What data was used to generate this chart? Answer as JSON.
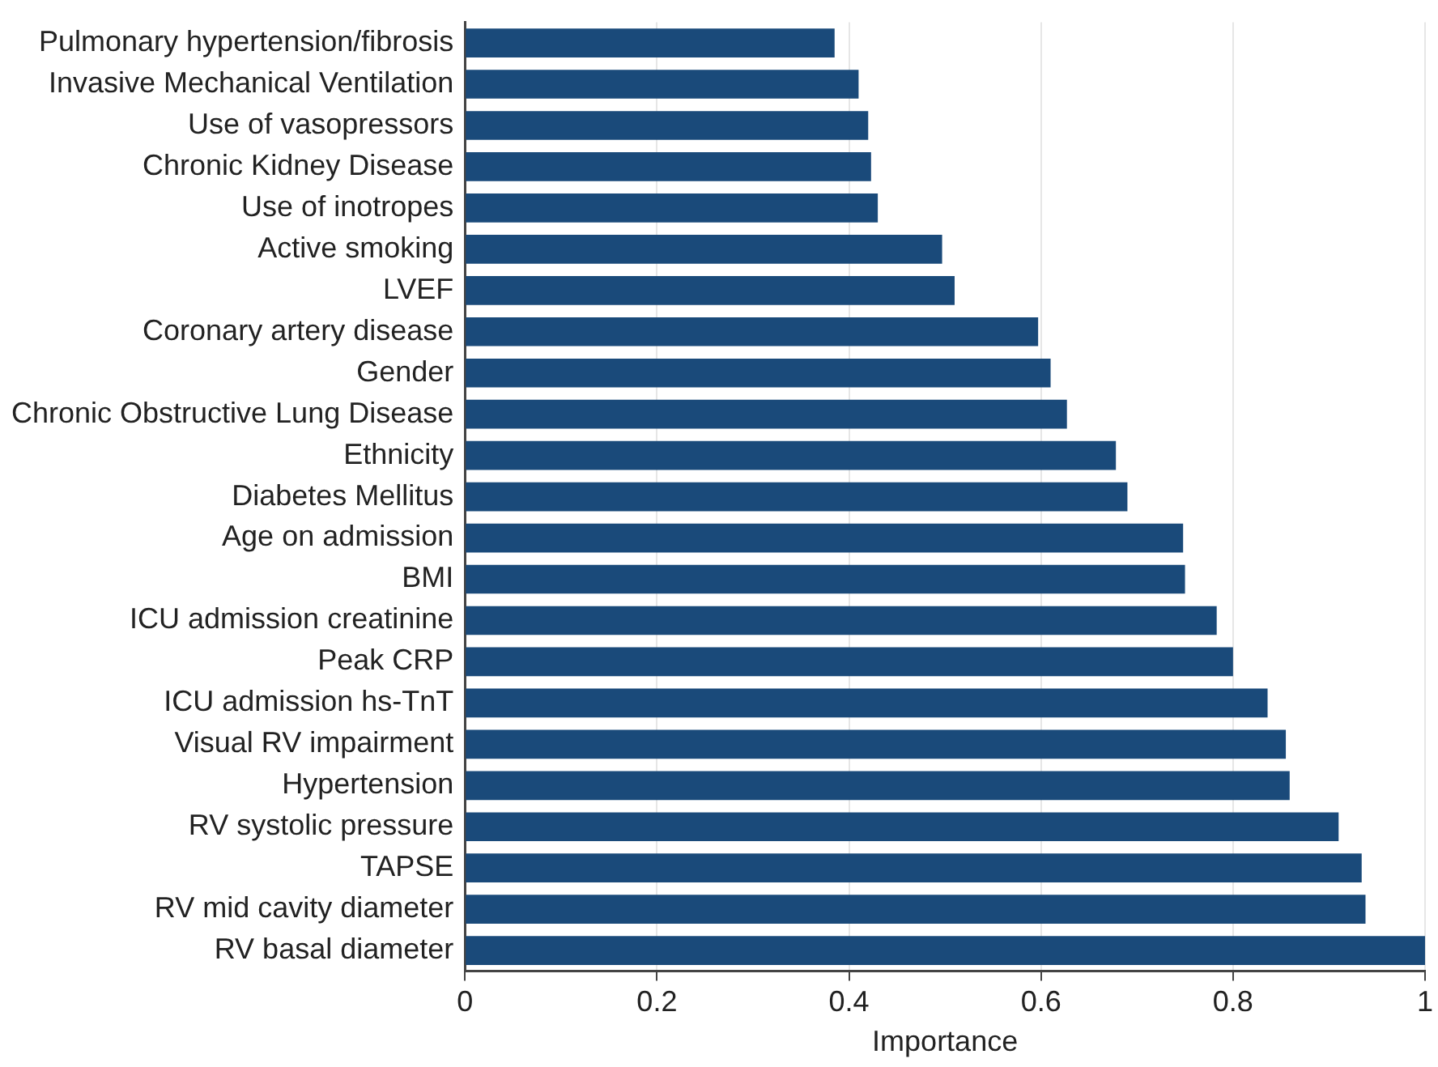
{
  "chart_data": {
    "type": "bar",
    "orientation": "horizontal",
    "xlabel": "Importance",
    "categories": [
      "Pulmonary hypertension/fibrosis",
      "Invasive Mechanical Ventilation",
      "Use of vasopressors",
      "Chronic Kidney Disease",
      "Use of inotropes",
      "Active smoking",
      "LVEF",
      "Coronary artery disease",
      "Gender",
      "Chronic Obstructive Lung Disease",
      "Ethnicity",
      "Diabetes Mellitus",
      "Age on admission",
      "BMI",
      "ICU admission creatinine",
      "Peak CRP",
      "ICU admission hs-TnT",
      "Visual RV impairment",
      "Hypertension",
      "RV systolic pressure",
      "TAPSE",
      "RV mid cavity diameter",
      "RV basal diameter"
    ],
    "values": [
      0.385,
      0.41,
      0.42,
      0.423,
      0.43,
      0.497,
      0.51,
      0.597,
      0.61,
      0.627,
      0.678,
      0.69,
      0.748,
      0.75,
      0.783,
      0.8,
      0.836,
      0.855,
      0.859,
      0.91,
      0.934,
      0.938,
      1.0
    ],
    "color": "#1a4a7a",
    "xlim": [
      0,
      1
    ],
    "xticks": [
      0,
      0.2,
      0.4,
      0.6,
      0.8,
      1
    ],
    "grid": "x"
  }
}
